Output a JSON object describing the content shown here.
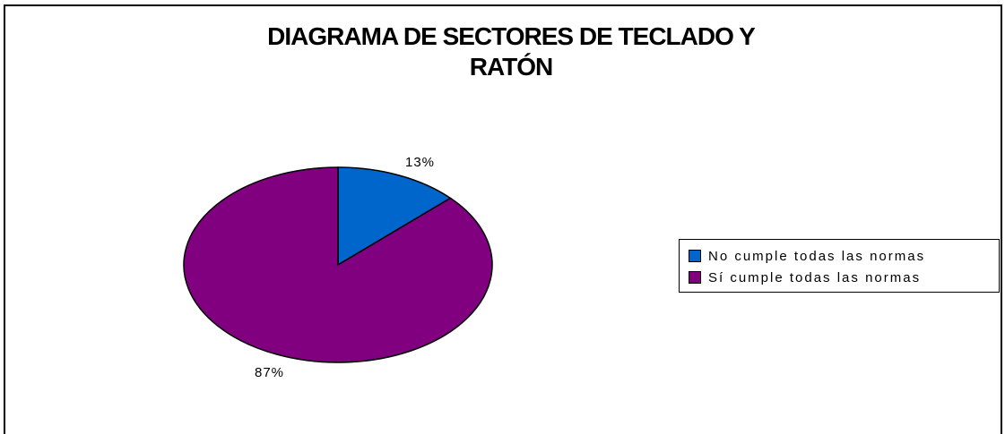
{
  "chart_data": {
    "type": "pie",
    "title_line1": "DIAGRAMA DE SECTORES DE TECLADO Y",
    "title_line2": "RATÓN",
    "categories": [
      "No cumple todas las normas",
      "Sí cumple todas las normas"
    ],
    "values": [
      13,
      87
    ],
    "labels": [
      "13%",
      "87%"
    ],
    "colors": [
      "#0066cc",
      "#800080"
    ],
    "legend_position": "right"
  },
  "legend": {
    "items": [
      {
        "label": "No cumple todas las normas",
        "color": "#0066cc"
      },
      {
        "label": "Sí cumple todas las normas",
        "color": "#800080"
      }
    ]
  }
}
